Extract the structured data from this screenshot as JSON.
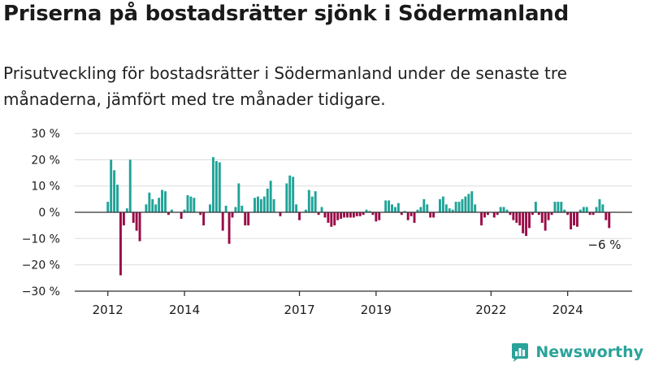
{
  "header": {
    "title": "Priserna på bostadsrätter sjönk i Södermanland",
    "subtitle": "Prisutveckling för bostadsrätter i Södermanland under de senaste tre månaderna, jämfört med tre månader tidigare."
  },
  "brand": {
    "name": "Newsworthy",
    "icon": "newsworthy-logo-icon",
    "color": "#2aa39a"
  },
  "chart_data": {
    "type": "bar",
    "x_unit": "month",
    "x_start": "2012-01",
    "values": [
      4,
      20,
      16,
      10.5,
      -24,
      -5,
      1.5,
      20,
      -4,
      -7,
      -11,
      0,
      3,
      7.5,
      5,
      3,
      5.5,
      8.5,
      8,
      -1,
      1,
      0,
      0,
      -2.5,
      1,
      6.5,
      6,
      5.5,
      0,
      -1,
      -5,
      0,
      3,
      21,
      19.5,
      19,
      -7,
      2.5,
      -12,
      -2,
      2,
      11,
      2.5,
      -5,
      -5,
      0,
      5.5,
      6,
      5,
      6,
      9,
      12,
      5,
      0,
      -1.5,
      0,
      11,
      14,
      13.5,
      3,
      -3,
      0,
      1,
      8.5,
      6,
      8,
      -1,
      2,
      -2,
      -4,
      -5.5,
      -5,
      -3,
      -2.5,
      -2,
      -2,
      -2,
      -2,
      -1.5,
      -1.5,
      -1,
      1,
      0.5,
      -1,
      -3.5,
      -3,
      0,
      4.5,
      4.5,
      3,
      2,
      3.5,
      -1,
      0.5,
      -3,
      -1.5,
      -4,
      1,
      2,
      5,
      3,
      -2,
      -2,
      0,
      5,
      6,
      3,
      1.5,
      1,
      4,
      4,
      5,
      6,
      7,
      8,
      3,
      0,
      -5,
      -2,
      -1,
      0,
      -2,
      -1,
      2,
      2,
      1,
      -1,
      -3,
      -4,
      -5,
      -8,
      -9,
      -6,
      -1,
      4,
      -1,
      -4,
      -7,
      -3,
      -1,
      4,
      4,
      4,
      1,
      -1,
      -6.5,
      -5,
      -5.5,
      1,
      2,
      2,
      -1,
      -1,
      2,
      5,
      3,
      -3,
      -6
    ],
    "year_ticks": [
      "2012",
      "2014",
      "2017",
      "2019",
      "2022",
      "2024"
    ],
    "y_ticks": [
      "30 %",
      "20 %",
      "10 %",
      "0 %",
      "−10 %",
      "−20 %",
      "−30 %"
    ],
    "ylim": [
      -30,
      30
    ],
    "annotation": "−6 %",
    "colors": {
      "positive": "#1fa398",
      "negative": "#9b0a47",
      "grid": "#dddddd",
      "axis": "#333333"
    }
  }
}
